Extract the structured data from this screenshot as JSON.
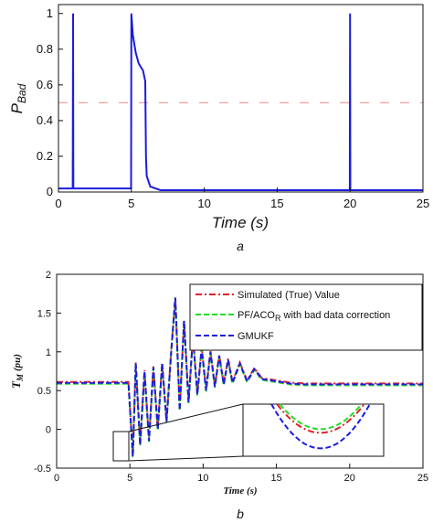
{
  "chart_data": [
    {
      "type": "line",
      "xlabel": "Time (s)",
      "ylabel": "P",
      "ylabel_sub": "Bad",
      "caption": "a",
      "xlim": [
        0,
        25
      ],
      "ylim": [
        0,
        1.05
      ],
      "xticks": [
        0,
        5,
        10,
        15,
        20,
        25
      ],
      "yticks": [
        0,
        0.2,
        0.4,
        0.6,
        0.8,
        1
      ],
      "grid": false,
      "threshold": 0.5,
      "colors": {
        "signal": "#1c1ce0",
        "threshold": "#f0a0a0"
      },
      "series": [
        {
          "x": [
            0,
            0.98,
            1.0,
            1.02,
            4.98,
            5.0,
            5.1,
            5.3,
            5.5,
            5.8,
            5.95,
            6.0,
            6.05,
            6.3,
            7,
            8,
            19.98,
            20.0,
            20.02,
            25
          ],
          "y": [
            0.02,
            0.02,
            1.0,
            0.02,
            0.02,
            1.0,
            0.88,
            0.78,
            0.72,
            0.68,
            0.62,
            0.2,
            0.09,
            0.03,
            0.01,
            0.01,
            0.01,
            1.0,
            0.01,
            0.01
          ]
        }
      ]
    },
    {
      "type": "line",
      "xlabel": "Time (s)",
      "ylabel": "T",
      "ylabel_sub": "M",
      "ylabel_unit": "(pu)",
      "caption": "b",
      "xlim": [
        0,
        25
      ],
      "ylim": [
        -0.5,
        2
      ],
      "xticks": [
        0,
        5,
        10,
        15,
        20,
        25
      ],
      "yticks": [
        -0.5,
        0,
        0.5,
        1,
        1.5,
        2
      ],
      "grid": false,
      "legend_position": "top-right",
      "series": [
        {
          "name": "Simulated (True) Value",
          "color": "#e0202a",
          "style": "dash-dot"
        },
        {
          "name": "PF/ACO",
          "name_sub": "R",
          "name_rest": " with bad data correction",
          "color": "#22dd22",
          "style": "dashed"
        },
        {
          "name": "GMUKF",
          "color": "#1c1ce0",
          "style": "dashed"
        }
      ],
      "response": {
        "steady_value": 0.58,
        "x": [
          0,
          4.9,
          5.2,
          5.4,
          5.7,
          6.0,
          6.3,
          6.6,
          6.9,
          7.2,
          7.5,
          7.8,
          8.1,
          8.4,
          8.7,
          9.0,
          9.3,
          9.6,
          9.9,
          10.2,
          10.5,
          10.8,
          11.1,
          11.4,
          11.7,
          12.0,
          12.5,
          13.0,
          13.5,
          14.0,
          15.0,
          16.0,
          17.0,
          25
        ],
        "y": [
          0.6,
          0.6,
          -0.35,
          0.85,
          -0.2,
          0.75,
          -0.15,
          0.8,
          0.0,
          0.85,
          0.1,
          0.95,
          1.7,
          0.25,
          1.4,
          0.35,
          1.2,
          0.45,
          1.05,
          0.5,
          1.0,
          0.55,
          0.95,
          0.58,
          0.9,
          0.6,
          0.85,
          0.62,
          0.78,
          0.65,
          0.62,
          0.59,
          0.58,
          0.58
        ]
      },
      "inset": {
        "zoom_x": [
          4.6,
          5.4
        ],
        "zoom_y": [
          -0.45,
          -0.05
        ]
      }
    }
  ]
}
